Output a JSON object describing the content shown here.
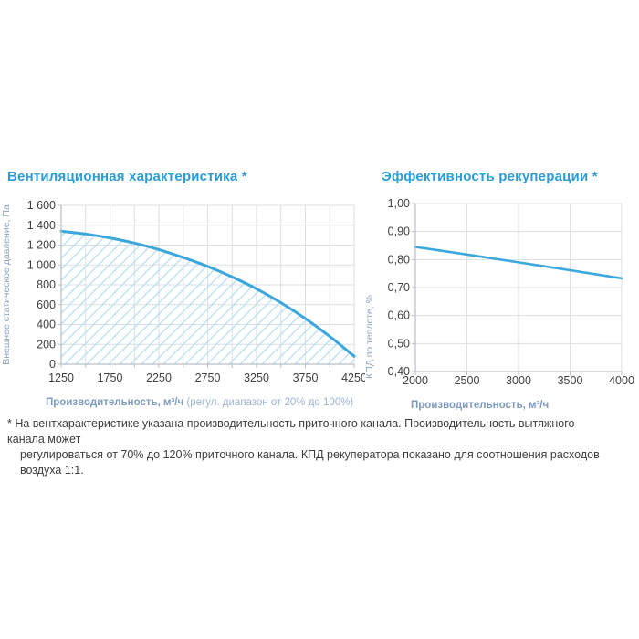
{
  "colors": {
    "background": "#ffffff",
    "title_blue": "#2b9cd6",
    "curve_blue": "#3ba7dc",
    "hatch_blue": "#bfe2f2",
    "grid": "#dadfe4",
    "axis": "#b9bfc4",
    "tick_text": "#3f3f3f",
    "ylabel_text": "#8ba3c0",
    "xlabel_bold": "#7e9bbd",
    "xlabel_note": "#9cb4d1",
    "footnote_text": "#3c3c3c"
  },
  "footnote": {
    "line1": "* На вентхарактеристике указана производительность приточного канала. Производительность вытяжного канала может",
    "line2": "регулироваться от 70% до 120% приточного канала. КПД рекуператора показано для соотношения расходов воздуха 1:1."
  },
  "chart_data": [
    {
      "type": "line",
      "title": "Вентиляционная характеристика *",
      "xlabel": "Производительность, м³/ч",
      "xlabel_note": " (регул. диапазон от 20% до 100%)",
      "ylabel": "Внешнее статическое давление, Па",
      "x": [
        1250,
        1500,
        1750,
        2000,
        2250,
        2500,
        2750,
        3000,
        3250,
        3500,
        3750,
        4000,
        4250
      ],
      "y": [
        1340,
        1312,
        1272,
        1220,
        1155,
        1075,
        985,
        880,
        760,
        620,
        460,
        280,
        80
      ],
      "xlim": [
        1250,
        4250
      ],
      "ylim": [
        0,
        1600
      ],
      "x_grid_step": 250,
      "y_grid_step": 200,
      "x_ticks": [
        1250,
        1750,
        2250,
        2750,
        3250,
        3750,
        4250
      ],
      "x_tick_labels": [
        "1250",
        "1750",
        "2250",
        "2750",
        "3250",
        "3750",
        "4250"
      ],
      "y_ticks": [
        0,
        200,
        400,
        600,
        800,
        1000,
        1200,
        1400,
        1600
      ],
      "y_tick_labels": [
        "0",
        "200",
        "400",
        "600",
        "800",
        "1 000",
        "1 200",
        "1 400",
        "1 600"
      ],
      "grid": true,
      "legend": "none",
      "hatched_area_under_curve": true
    },
    {
      "type": "line",
      "title": "Эффективность рекуперации *",
      "xlabel": "Производительность, м³/ч",
      "xlabel_note": "",
      "ylabel": "КПД по теплоте, %",
      "x": [
        2000,
        2500,
        3000,
        3500,
        4000
      ],
      "y": [
        0.845,
        0.818,
        0.79,
        0.762,
        0.733
      ],
      "xlim": [
        2000,
        4000
      ],
      "ylim": [
        0.4,
        1.0
      ],
      "x_grid_step": 500,
      "y_grid_step": 0.1,
      "x_ticks": [
        2000,
        2500,
        3000,
        3500,
        4000
      ],
      "x_tick_labels": [
        "2000",
        "2500",
        "3000",
        "3500",
        "4000"
      ],
      "y_ticks": [
        0.4,
        0.5,
        0.6,
        0.7,
        0.8,
        0.9,
        1.0
      ],
      "y_tick_labels": [
        "0,40",
        "0,50",
        "0,60",
        "0,70",
        "0,80",
        "0,90",
        "1,00"
      ],
      "grid": true,
      "legend": "none",
      "hatched_area_under_curve": false
    }
  ]
}
